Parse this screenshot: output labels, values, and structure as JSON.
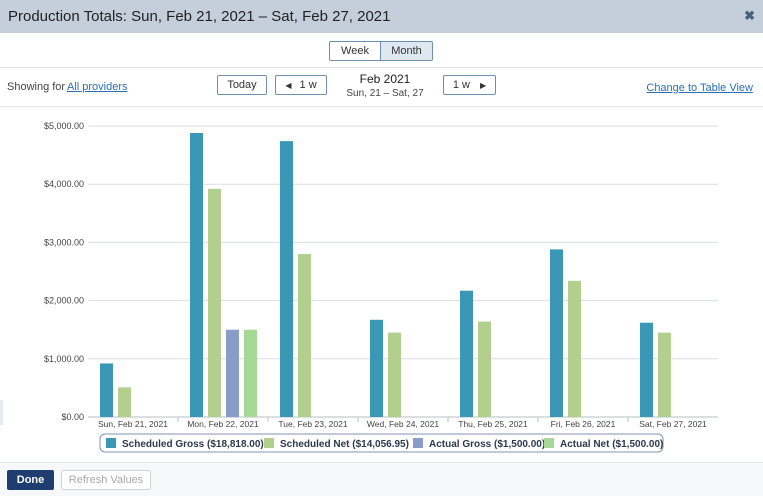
{
  "window": {
    "title": "Production Totals:  Sun, Feb 21, 2021 – Sat, Feb 27, 2021",
    "close_icon": "close-icon"
  },
  "view_toggle": {
    "week_label": "Week",
    "month_label": "Month",
    "selected": "Month"
  },
  "toolbar": {
    "showing_label": "Showing for",
    "providers_link": "All providers",
    "today_label": "Today",
    "prev_label": "1 w",
    "next_label": "1 w",
    "period_month": "Feb 2021",
    "period_range": "Sun, 21 – Sat, 27",
    "table_view_link": "Change to Table View"
  },
  "footer": {
    "done_label": "Done",
    "refresh_label": "Refresh Values"
  },
  "chart_data": {
    "type": "bar",
    "categories": [
      "Sun,  Feb 21, 2021",
      "Mon,  Feb 22, 2021",
      "Tue,  Feb 23, 2021",
      "Wed,  Feb 24, 2021",
      "Thu,  Feb 25, 2021",
      "Fri,  Feb 26, 2021",
      "Sat,  Feb 27, 2021"
    ],
    "series": [
      {
        "name": "Scheduled Gross",
        "legend": "Scheduled Gross ($18,818.00)",
        "color": "#3a97b5",
        "values": [
          920,
          4880,
          4740,
          1670,
          2170,
          2880,
          1620
        ]
      },
      {
        "name": "Scheduled Net",
        "legend": "Scheduled Net ($14,056.95)",
        "color": "#b2cf8e",
        "values": [
          510,
          3920,
          2800,
          1450,
          1640,
          2340,
          1450
        ]
      },
      {
        "name": "Actual Gross",
        "legend": "Actual Gross ($1,500.00)",
        "color": "#8a9dc9",
        "values": [
          0,
          1500,
          0,
          0,
          0,
          0,
          0
        ]
      },
      {
        "name": "Actual Net",
        "legend": "Actual Net ($1,500.00)",
        "color": "#a6d897",
        "values": [
          0,
          1500,
          0,
          0,
          0,
          0,
          0
        ]
      }
    ],
    "yticks": [
      "$0.00",
      "$1,000.00",
      "$2,000.00",
      "$3,000.00",
      "$4,000.00",
      "$5,000.00"
    ],
    "ylim": [
      0,
      5000
    ],
    "grid": true,
    "legend_position": "bottom"
  }
}
